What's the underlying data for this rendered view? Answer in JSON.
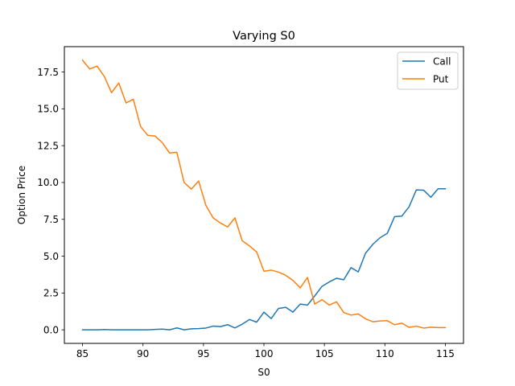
{
  "chart_data": {
    "type": "line",
    "title": "Varying S0",
    "xlabel": "S0",
    "ylabel": "Option Price",
    "xlim": [
      83.5,
      116.5
    ],
    "ylim": [
      -0.92,
      19.22
    ],
    "xticks": [
      85,
      90,
      95,
      100,
      105,
      110,
      115
    ],
    "xtick_labels": [
      "85",
      "90",
      "95",
      "100",
      "105",
      "110",
      "115"
    ],
    "yticks": [
      0,
      2.5,
      5,
      7.5,
      10,
      12.5,
      15,
      17.5
    ],
    "ytick_labels": [
      "0.0",
      "2.5",
      "5.0",
      "7.5",
      "10.0",
      "12.5",
      "15.0",
      "17.5"
    ],
    "grid": false,
    "legend": "top-right",
    "x": [
      85,
      85.6,
      86.2,
      86.8,
      87.4,
      88,
      88.6,
      89.2,
      89.8,
      90.4,
      91,
      91.6,
      92.2,
      92.8,
      93.4,
      94,
      94.6,
      95.2,
      95.8,
      96.4,
      97,
      97.6,
      98.2,
      98.8,
      99.4,
      100,
      100.6,
      101.2,
      101.8,
      102.4,
      103,
      103.6,
      104.2,
      104.8,
      105.4,
      106,
      106.6,
      107.2,
      107.8,
      108.4,
      109,
      109.6,
      110.2,
      110.8,
      111.4,
      112,
      112.6,
      113.2,
      113.8,
      114.4,
      115
    ],
    "series": [
      {
        "name": "Call",
        "color": "#1f77b4",
        "values": [
          0.0,
          0.0,
          0.0,
          0.02,
          0.0,
          0.0,
          0.0,
          0.0,
          0.0,
          0.0,
          0.03,
          0.05,
          0.0,
          0.13,
          0.0,
          0.07,
          0.08,
          0.12,
          0.25,
          0.22,
          0.35,
          0.13,
          0.38,
          0.7,
          0.52,
          1.2,
          0.76,
          1.45,
          1.53,
          1.2,
          1.75,
          1.68,
          2.3,
          2.95,
          3.25,
          3.5,
          3.4,
          4.22,
          3.93,
          5.2,
          5.8,
          6.25,
          6.55,
          7.68,
          7.72,
          8.35,
          9.5,
          9.48,
          9.0,
          9.57,
          9.57
        ]
      },
      {
        "name": "Put",
        "color": "#ff7f0e",
        "values": [
          18.3,
          17.7,
          17.9,
          17.2,
          16.1,
          16.75,
          15.4,
          15.65,
          13.8,
          13.2,
          13.15,
          12.7,
          12.0,
          12.05,
          10.0,
          9.55,
          10.1,
          8.45,
          7.6,
          7.25,
          6.98,
          7.6,
          6.05,
          5.7,
          5.28,
          3.98,
          4.05,
          3.92,
          3.7,
          3.35,
          2.85,
          3.55,
          1.75,
          2.05,
          1.68,
          1.9,
          1.17,
          1.0,
          1.08,
          0.75,
          0.55,
          0.6,
          0.62,
          0.35,
          0.45,
          0.17,
          0.25,
          0.12,
          0.18,
          0.15,
          0.15
        ]
      }
    ]
  }
}
